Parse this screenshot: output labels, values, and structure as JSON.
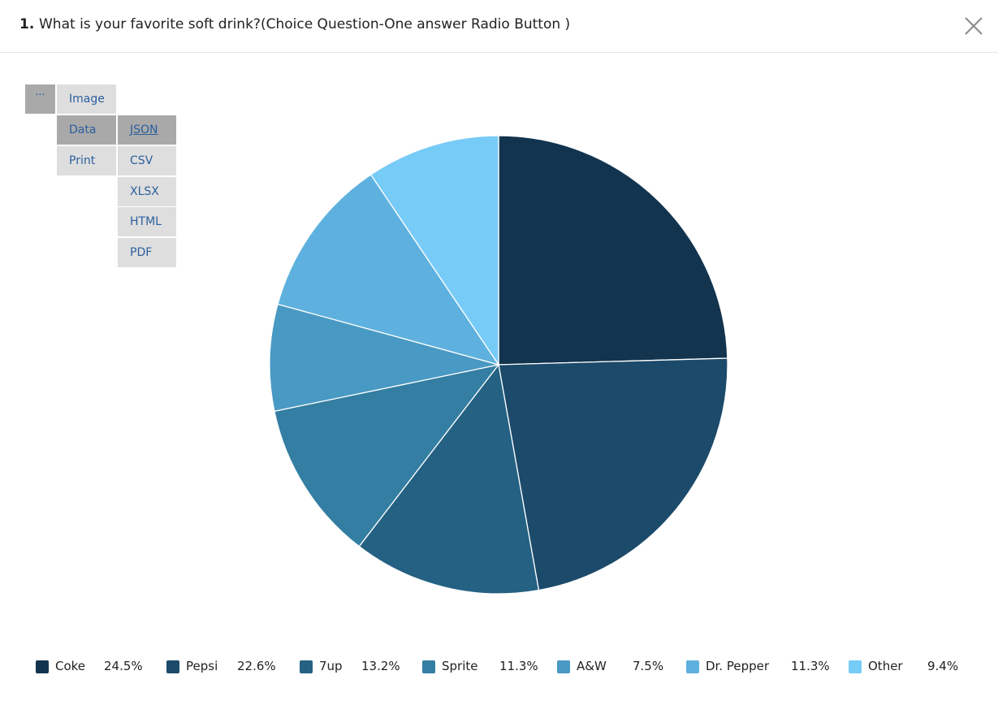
{
  "header": {
    "number": "1.",
    "title": "What is your favorite soft drink?(Choice Question-One answer Radio Button )"
  },
  "menu": {
    "dots": "···",
    "image": "Image",
    "data": "Data",
    "print": "Print",
    "json": "JSON",
    "csv": "CSV",
    "xlsx": "XLSX",
    "html": "HTML",
    "pdf": "PDF"
  },
  "chart_data": {
    "type": "pie",
    "title": "",
    "legend_position": "bottom",
    "slices": [
      {
        "label": "Coke",
        "value": 24.5,
        "display": "24.5%",
        "color": "#12344f"
      },
      {
        "label": "Pepsi",
        "value": 22.6,
        "display": "22.6%",
        "color": "#1c4a6a"
      },
      {
        "label": "7up",
        "value": 13.2,
        "display": "13.2%",
        "color": "#246183"
      },
      {
        "label": "Sprite",
        "value": 11.3,
        "display": "11.3%",
        "color": "#337ea2"
      },
      {
        "label": "A&W",
        "value": 7.5,
        "display": "7.5%",
        "color": "#4899c3"
      },
      {
        "label": "Dr. Pepper",
        "value": 11.3,
        "display": "11.3%",
        "color": "#5eb1de"
      },
      {
        "label": "Other",
        "value": 9.4,
        "display": "9.4%",
        "color": "#77cbf7"
      }
    ]
  }
}
